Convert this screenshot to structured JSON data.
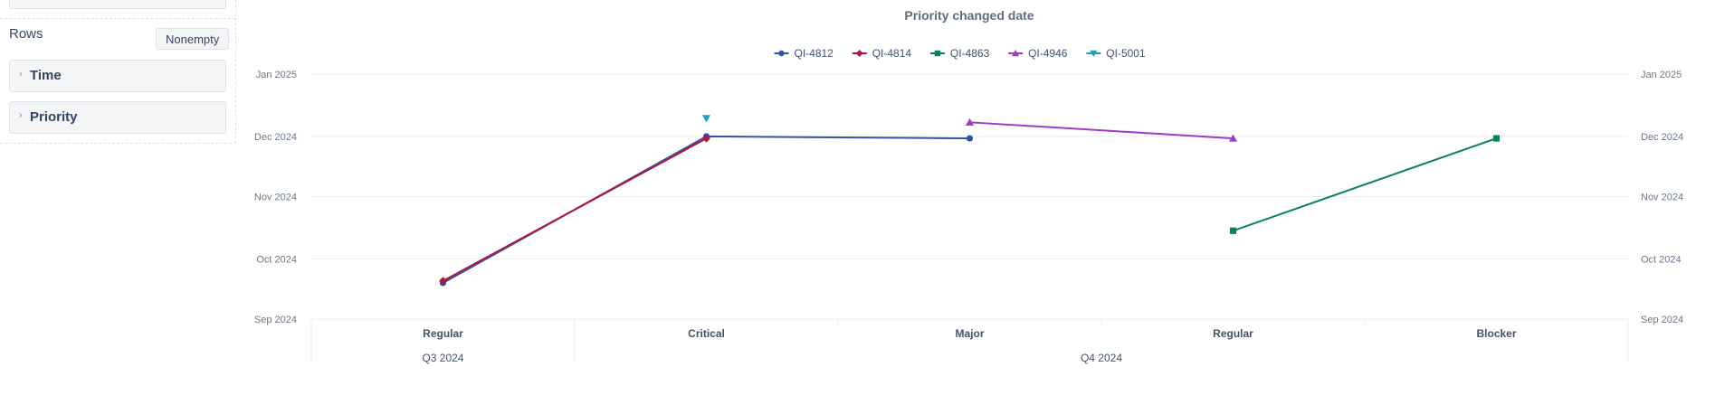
{
  "sidebar": {
    "rows_label": "Rows",
    "nonempty_label": "Nonempty",
    "items": [
      {
        "label": "Time",
        "chevron": "chevron-right-icon"
      },
      {
        "label": "Priority",
        "chevron": "chevron-right-icon"
      }
    ]
  },
  "chart_data": {
    "type": "line",
    "title": "Priority changed date",
    "xlabel": "",
    "ylabel": "",
    "categories": [
      "Regular",
      "Critical",
      "Major",
      "Regular",
      "Blocker"
    ],
    "category_groups": [
      {
        "label": "Q3 2024",
        "span": [
          0,
          0
        ]
      },
      {
        "label": "Q4 2024",
        "span": [
          1,
          4
        ]
      }
    ],
    "y_axis": {
      "type": "date",
      "range": [
        "2024-09-01",
        "2025-01-01"
      ],
      "ticks": [
        {
          "label": "Jan 2025",
          "date": "2025-01-01"
        },
        {
          "label": "Dec 2024",
          "date": "2024-12-01"
        },
        {
          "label": "Nov 2024",
          "date": "2024-11-01"
        },
        {
          "label": "Oct 2024",
          "date": "2024-10-01"
        },
        {
          "label": "Sep 2024",
          "date": "2024-09-01"
        }
      ],
      "mirror_right": true
    },
    "grid": true,
    "legend_position": "top-center",
    "series": [
      {
        "name": "QI-4812",
        "color": "#2d57a6",
        "marker": "circle",
        "values": [
          "2024-09-19",
          "2024-12-01",
          "2024-11-30",
          null,
          null
        ]
      },
      {
        "name": "QI-4814",
        "color": "#b0173f",
        "marker": "diamond",
        "values": [
          "2024-09-20",
          "2024-11-30",
          null,
          null,
          null
        ]
      },
      {
        "name": "QI-4863",
        "color": "#0a8455",
        "marker": "square",
        "values": [
          null,
          null,
          null,
          "2024-10-15",
          "2024-11-30"
        ]
      },
      {
        "name": "QI-4946",
        "color": "#9b3cc4",
        "marker": "triangle-up",
        "values": [
          null,
          null,
          "2024-12-08",
          "2024-11-30",
          null
        ]
      },
      {
        "name": "QI-5001",
        "color": "#1aa2b6",
        "marker": "triangle-down",
        "values": [
          null,
          "2024-12-10",
          null,
          null,
          null
        ]
      }
    ]
  }
}
